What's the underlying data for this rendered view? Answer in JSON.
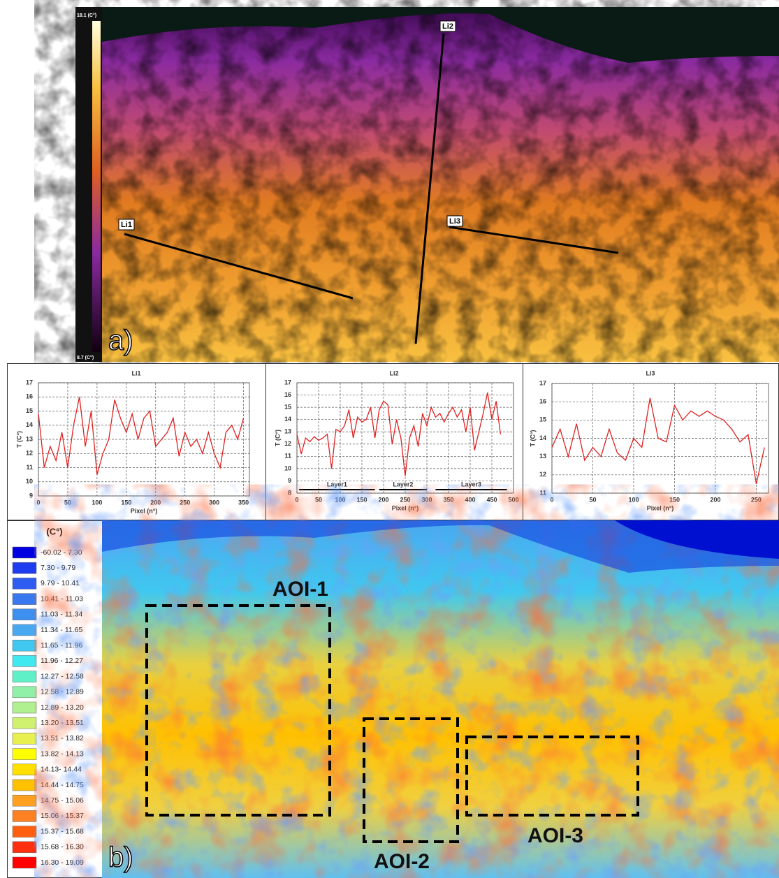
{
  "panel_a": {
    "label": "a)",
    "scale_max": "18.1 (C°)",
    "scale_min": "8.7 (C°)",
    "lines": [
      "Li1",
      "Li2",
      "Li3"
    ]
  },
  "chart_data": [
    {
      "type": "line",
      "title": "Li1",
      "x_label": "Pixel (n°)",
      "y_label": "T (C°)",
      "x": [
        0,
        10,
        20,
        30,
        40,
        50,
        60,
        70,
        80,
        90,
        100,
        110,
        120,
        130,
        140,
        150,
        160,
        170,
        180,
        190,
        200,
        210,
        220,
        230,
        240,
        250,
        260,
        270,
        280,
        290,
        300,
        310,
        320,
        330,
        340,
        350
      ],
      "values": [
        14.8,
        11,
        12.5,
        11.5,
        13.5,
        11,
        14,
        16,
        12.5,
        15,
        10.5,
        12,
        13,
        15.8,
        14.5,
        13.5,
        14.8,
        13,
        14.5,
        15,
        12.5,
        13,
        13.5,
        14.5,
        11.8,
        13.5,
        12.5,
        13,
        12,
        13.5,
        12,
        11,
        13.5,
        14,
        13,
        14.5
      ],
      "color": "#e02020",
      "xlim": [
        0,
        360
      ],
      "xticks": [
        0,
        50,
        100,
        150,
        200,
        250,
        300,
        350
      ],
      "ylim": [
        9,
        17
      ],
      "yticks": [
        9,
        10,
        11,
        12,
        13,
        14,
        15,
        16,
        17
      ],
      "grid": true
    },
    {
      "type": "line",
      "title": "Li2",
      "x_label": "Pixel (n°)",
      "y_label": "T (C°)",
      "x": [
        0,
        10,
        20,
        30,
        40,
        50,
        60,
        70,
        80,
        90,
        100,
        110,
        120,
        130,
        140,
        150,
        160,
        170,
        180,
        190,
        200,
        210,
        220,
        230,
        240,
        250,
        260,
        270,
        280,
        290,
        300,
        310,
        320,
        330,
        340,
        350,
        360,
        370,
        380,
        390,
        400,
        410,
        420,
        430,
        440,
        450,
        460,
        470
      ],
      "values": [
        12.8,
        11.2,
        12.5,
        12.2,
        12.6,
        12.3,
        12.5,
        12.8,
        10,
        13.2,
        13,
        13.5,
        14.8,
        12.5,
        14.2,
        13.8,
        14,
        15,
        12.5,
        14.8,
        15.5,
        15.2,
        12,
        14,
        12.5,
        9.4,
        12.5,
        13.5,
        11.8,
        14.5,
        13.5,
        15,
        14.2,
        14.5,
        13.8,
        14.5,
        15,
        14.2,
        14.8,
        13,
        15,
        11.5,
        13,
        14.5,
        16.2,
        14,
        15.5,
        12.8
      ],
      "color": "#e02020",
      "xlim": [
        0,
        500
      ],
      "xticks": [
        0,
        50,
        100,
        150,
        200,
        250,
        300,
        350,
        400,
        450,
        500
      ],
      "ylim": [
        8,
        17
      ],
      "yticks": [
        8,
        9,
        10,
        11,
        12,
        13,
        14,
        15,
        16,
        17
      ],
      "grid": true,
      "annotations": [
        {
          "text": "Layer1",
          "x": [
            5,
            180
          ]
        },
        {
          "text": "Layer2",
          "x": [
            190,
            300
          ]
        },
        {
          "text": "Layer3",
          "x": [
            320,
            485
          ]
        }
      ]
    },
    {
      "type": "line",
      "title": "Li3",
      "x_label": "Pixel (n°)",
      "y_label": "T (C°)",
      "x": [
        0,
        10,
        20,
        30,
        40,
        50,
        60,
        70,
        80,
        90,
        100,
        110,
        120,
        130,
        140,
        150,
        160,
        170,
        180,
        190,
        200,
        210,
        220,
        230,
        240,
        250,
        260
      ],
      "values": [
        13.5,
        14.5,
        13,
        14.8,
        12.8,
        13.5,
        13,
        14.5,
        13.2,
        12.8,
        14,
        13.5,
        16.2,
        14,
        13.8,
        15.8,
        15,
        15.5,
        15.2,
        15.5,
        15.2,
        15,
        14.5,
        13.8,
        14.2,
        11.5,
        13.5
      ],
      "color": "#e02020",
      "xlim": [
        0,
        265
      ],
      "xticks": [
        0,
        50,
        100,
        150,
        200,
        250
      ],
      "ylim": [
        11,
        17
      ],
      "yticks": [
        11,
        12,
        13,
        14,
        15,
        16,
        17
      ],
      "grid": true
    }
  ],
  "panel_b": {
    "label": "b)",
    "legend": {
      "title": "(C°)",
      "items": [
        {
          "label": "-60.02 - 7.30",
          "color": "#0000e0"
        },
        {
          "label": "7.30 - 9.79",
          "color": "#1e3cf0"
        },
        {
          "label": "9.79 - 10.41",
          "color": "#2e5cf0"
        },
        {
          "label": "10.41 - 11.03",
          "color": "#3a78ef"
        },
        {
          "label": "11.03 - 11.34",
          "color": "#3e90f0"
        },
        {
          "label": "11.34 - 11.65",
          "color": "#48a8f0"
        },
        {
          "label": "11.65 - 11.96",
          "color": "#40c8f0"
        },
        {
          "label": "11.96 - 12.27",
          "color": "#40e8f0"
        },
        {
          "label": "12.27 - 12.58",
          "color": "#60f0c8"
        },
        {
          "label": "12.58 - 12.89",
          "color": "#90f0a8"
        },
        {
          "label": "12.89 - 13.20",
          "color": "#b0f090"
        },
        {
          "label": "13.20 - 13.51",
          "color": "#d0f070"
        },
        {
          "label": "13.51 - 13.82",
          "color": "#e8f050"
        },
        {
          "label": "13.82 - 14.13",
          "color": "#ffff00"
        },
        {
          "label": "14.13- 14.44",
          "color": "#ffe000"
        },
        {
          "label": "14.44 - 14.75",
          "color": "#ffc000"
        },
        {
          "label": "14.75 - 15.06",
          "color": "#ffa020"
        },
        {
          "label": "15.06 - 15.37",
          "color": "#ff8020"
        },
        {
          "label": "15.37 - 15.68",
          "color": "#ff6010"
        },
        {
          "label": "15.68 - 16.30",
          "color": "#ff3010"
        },
        {
          "label": "16.30 - 19.09",
          "color": "#ff0000"
        }
      ]
    },
    "aois": [
      "AOI-1",
      "AOI-2",
      "AOI-3"
    ]
  }
}
